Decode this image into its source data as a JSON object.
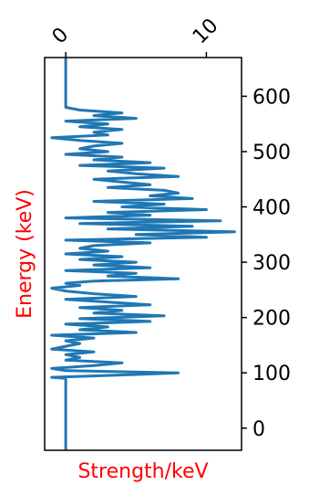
{
  "chart_data": {
    "type": "line",
    "orientation": "vertical",
    "title": "",
    "xlabel": "Strength/keV",
    "ylabel": "Energy (keV)",
    "xlim": [
      -1.5,
      12.5
    ],
    "ylim": [
      -40,
      670
    ],
    "x_ticks": [
      0,
      10
    ],
    "x_tick_labels": [
      "0",
      "10"
    ],
    "x_tick_position": "top",
    "y_ticks": [
      0,
      100,
      200,
      300,
      400,
      500,
      600
    ],
    "y_tick_labels": [
      "0",
      "100",
      "200",
      "300",
      "400",
      "500",
      "600"
    ],
    "y_tick_position": "right",
    "grid": false,
    "label_color": "#ff0000",
    "series": [
      {
        "color": "#1f77b4",
        "y": [
          -40,
          90,
          92,
          97,
          100,
          104,
          108,
          113,
          118,
          123,
          128,
          133,
          138,
          143,
          148,
          153,
          158,
          163,
          168,
          173,
          178,
          183,
          188,
          193,
          198,
          203,
          208,
          213,
          218,
          223,
          228,
          233,
          238,
          243,
          248,
          253,
          258,
          262,
          266,
          270,
          275,
          280,
          285,
          290,
          295,
          300,
          305,
          310,
          315,
          320,
          325,
          330,
          335,
          340,
          345,
          350,
          355,
          360,
          365,
          370,
          375,
          380,
          385,
          390,
          395,
          400,
          405,
          410,
          415,
          420,
          425,
          430,
          435,
          440,
          445,
          450,
          455,
          460,
          465,
          470,
          475,
          480,
          485,
          490,
          495,
          500,
          505,
          510,
          515,
          520,
          525,
          530,
          535,
          540,
          545,
          550,
          555,
          560,
          565,
          570,
          575,
          580,
          585,
          590,
          595,
          600,
          610,
          670
        ],
        "x": [
          0,
          0,
          -1,
          5,
          8,
          0,
          -1,
          2,
          4,
          0,
          1,
          0,
          2,
          -1,
          0,
          1,
          0,
          2,
          -1,
          5,
          1,
          3,
          0,
          6,
          1,
          7,
          2,
          4,
          1,
          6,
          3,
          0,
          5,
          2,
          0,
          -1,
          1,
          0,
          2,
          8,
          3,
          5,
          0,
          6,
          2,
          5,
          1,
          4,
          0,
          3,
          1,
          2,
          6,
          0,
          10,
          5,
          12,
          3,
          9,
          1,
          11,
          0,
          6,
          3,
          10,
          4,
          7,
          2,
          9,
          6,
          8,
          7,
          3,
          6,
          4,
          2,
          8,
          5,
          3,
          7,
          1,
          6,
          2,
          4,
          0,
          3,
          1,
          2,
          4,
          1,
          -1,
          3,
          2,
          4,
          1,
          3,
          0,
          5,
          2,
          4,
          1,
          0,
          0,
          0,
          0,
          0,
          0,
          0
        ]
      }
    ]
  }
}
